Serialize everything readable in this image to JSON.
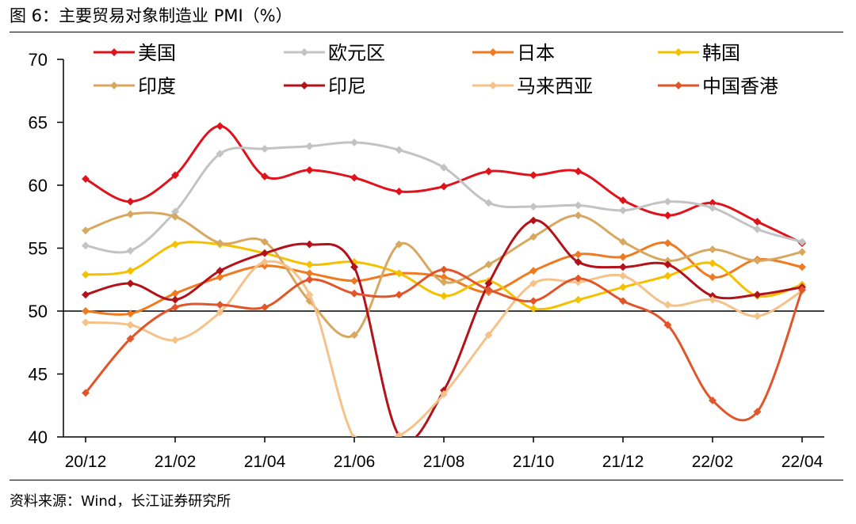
{
  "figure": {
    "title": "图 6：主要贸易对象制造业 PMI（%）",
    "source": "资料来源：Wind，长江证券研究所"
  },
  "chart_data": {
    "type": "line",
    "title": "主要贸易对象制造业 PMI（%）",
    "xlabel": "",
    "ylabel": "",
    "ylim": [
      40,
      70
    ],
    "yticks": [
      40,
      45,
      50,
      55,
      60,
      65,
      70
    ],
    "reference_line": 50,
    "x": [
      "20/12",
      "21/01",
      "21/02",
      "21/03",
      "21/04",
      "21/05",
      "21/06",
      "21/07",
      "21/08",
      "21/09",
      "21/10",
      "21/11",
      "21/12",
      "22/01",
      "22/02",
      "22/03",
      "22/04"
    ],
    "xtick_labels": [
      "20/12",
      "21/02",
      "21/04",
      "21/06",
      "21/08",
      "21/10",
      "21/12",
      "22/02",
      "22/04"
    ],
    "legend_position": "top",
    "series": [
      {
        "name": "美国",
        "color": "#e0131d",
        "values": [
          60.5,
          58.7,
          60.8,
          64.7,
          60.7,
          61.2,
          60.6,
          59.5,
          59.9,
          61.1,
          60.8,
          61.1,
          58.8,
          57.6,
          58.6,
          57.1,
          55.4
        ]
      },
      {
        "name": "欧元区",
        "color": "#c3c3c3",
        "values": [
          55.2,
          54.8,
          57.9,
          62.5,
          62.9,
          63.1,
          63.4,
          62.8,
          61.4,
          58.6,
          58.3,
          58.4,
          58.0,
          58.7,
          58.2,
          56.5,
          55.5
        ]
      },
      {
        "name": "日本",
        "color": "#f07a20",
        "values": [
          50.0,
          49.8,
          51.4,
          52.7,
          53.6,
          53.0,
          52.4,
          53.0,
          52.7,
          51.5,
          53.2,
          54.5,
          54.3,
          55.4,
          52.7,
          54.1,
          53.5
        ]
      },
      {
        "name": "韩国",
        "color": "#f5c000",
        "values": [
          52.9,
          53.2,
          55.3,
          55.3,
          54.6,
          53.7,
          53.9,
          53.0,
          51.2,
          52.4,
          50.2,
          50.9,
          51.9,
          52.8,
          53.8,
          51.2,
          52.1
        ]
      },
      {
        "name": "印度",
        "color": "#d8a860",
        "values": [
          56.4,
          57.7,
          57.5,
          55.4,
          55.5,
          50.8,
          48.1,
          55.3,
          52.3,
          53.7,
          55.9,
          57.6,
          55.5,
          54.0,
          54.9,
          54.0,
          54.7
        ]
      },
      {
        "name": "印尼",
        "color": "#b3121a",
        "values": [
          51.3,
          52.2,
          50.9,
          53.2,
          54.6,
          55.3,
          53.5,
          40.1,
          43.7,
          52.2,
          57.2,
          53.9,
          53.5,
          53.7,
          51.2,
          51.3,
          51.9
        ]
      },
      {
        "name": "马来西亚",
        "color": "#f5c28a",
        "values": [
          49.1,
          48.9,
          47.7,
          49.9,
          53.9,
          51.3,
          39.9,
          40.1,
          43.4,
          48.1,
          52.2,
          52.3,
          52.8,
          50.5,
          50.9,
          49.6,
          51.6
        ]
      },
      {
        "name": "中国香港",
        "color": "#e0562a",
        "values": [
          43.5,
          47.8,
          50.3,
          50.5,
          50.3,
          52.5,
          51.4,
          51.3,
          53.3,
          51.7,
          50.8,
          52.6,
          50.8,
          48.9,
          42.9,
          42.0,
          51.7
        ]
      }
    ]
  }
}
